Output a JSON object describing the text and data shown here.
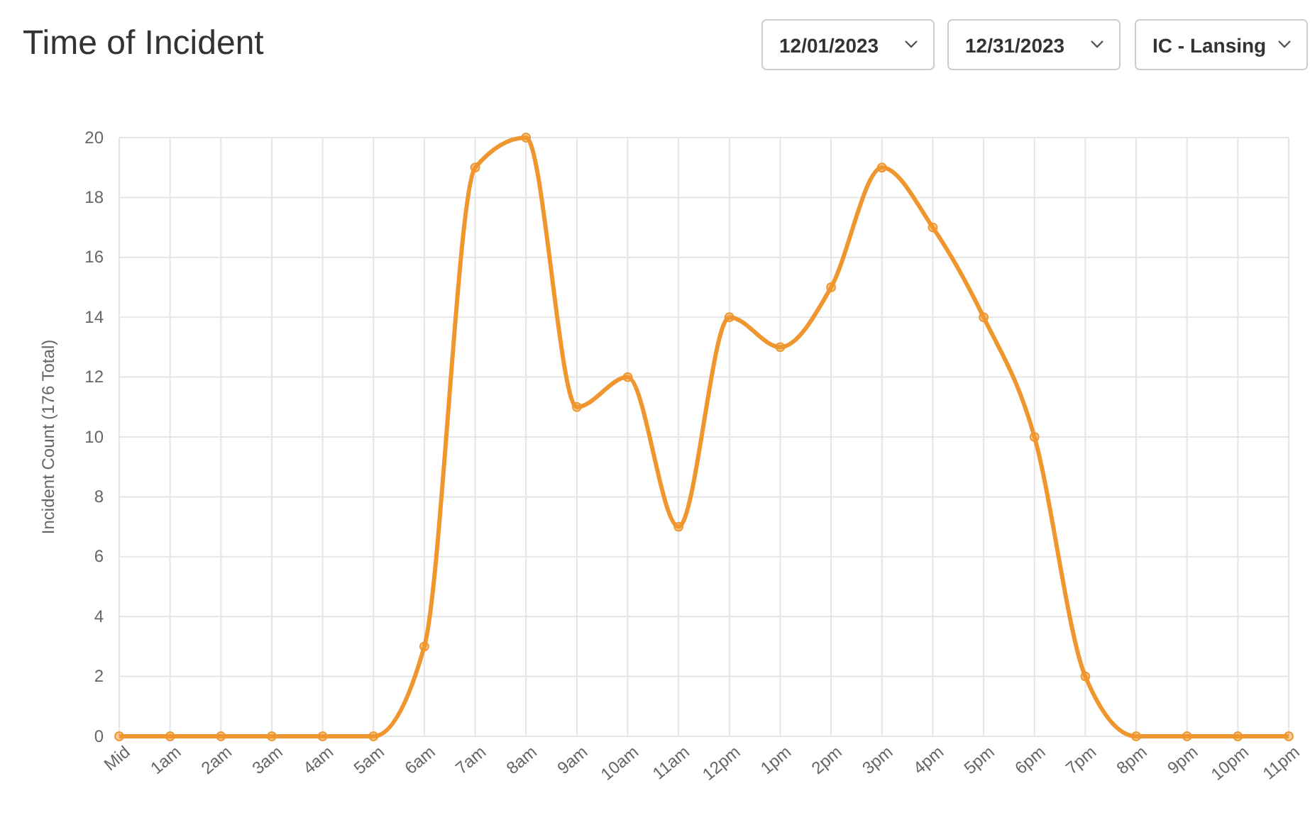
{
  "chart_data": {
    "type": "line",
    "title": "Time of Incident",
    "ylabel": "Incident Count (176 Total)",
    "annotations": [
      "12/01/2023",
      "12/31/2023",
      "IC - Lansing"
    ],
    "categories": [
      "Mid",
      "1am",
      "2am",
      "3am",
      "4am",
      "5am",
      "6am",
      "7am",
      "8am",
      "9am",
      "10am",
      "11am",
      "12pm",
      "1pm",
      "2pm",
      "3pm",
      "4pm",
      "5pm",
      "6pm",
      "7pm",
      "8pm",
      "9pm",
      "10pm",
      "11pm"
    ],
    "series": [
      {
        "color": "#f0962e",
        "values": [
          0,
          0,
          0,
          0,
          0,
          0,
          3,
          19,
          20,
          11,
          12,
          7,
          14,
          13,
          15,
          19,
          17,
          14,
          10,
          2,
          0,
          0,
          0,
          0
        ]
      }
    ],
    "ylim": [
      0,
      20
    ],
    "yticks": [
      0,
      2,
      4,
      6,
      8,
      10,
      12,
      14,
      16,
      18,
      20
    ],
    "grid": true,
    "marker": "circle",
    "line_style": "solid"
  }
}
